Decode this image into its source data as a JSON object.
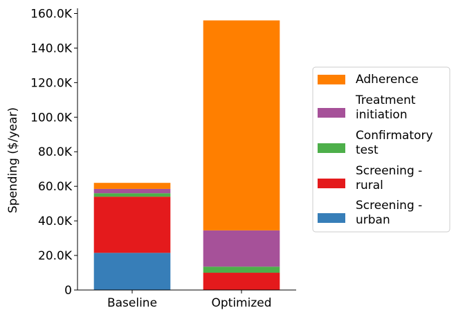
{
  "chart_data": {
    "type": "bar",
    "stacked": true,
    "categories": [
      "Baseline",
      "Optimized"
    ],
    "ylabel": "Spending ($/year)",
    "ylim": [
      0,
      163000
    ],
    "yticks": [
      0,
      20000,
      40000,
      60000,
      80000,
      100000,
      120000,
      140000,
      160000
    ],
    "ytick_labels": [
      "0",
      "20.0K",
      "40.0K",
      "60.0K",
      "80.0K",
      "100.0K",
      "120.0K",
      "140.0K",
      "160.0K"
    ],
    "grid": false,
    "legend_position": "right",
    "series": [
      {
        "name": "Screening -\nurban",
        "color": "#377eb8",
        "values": [
          21500,
          0
        ]
      },
      {
        "name": "Screening -\nrural",
        "color": "#e41a1c",
        "values": [
          32500,
          10000
        ]
      },
      {
        "name": "Confirmatory\ntest",
        "color": "#4daf4a",
        "values": [
          2000,
          3500
        ]
      },
      {
        "name": "Treatment\ninitiation",
        "color": "#a65199",
        "values": [
          2500,
          21000
        ]
      },
      {
        "name": "Adherence",
        "color": "#ff7f00",
        "values": [
          3500,
          121500
        ]
      }
    ],
    "legend_order": [
      4,
      3,
      2,
      1,
      0
    ]
  }
}
